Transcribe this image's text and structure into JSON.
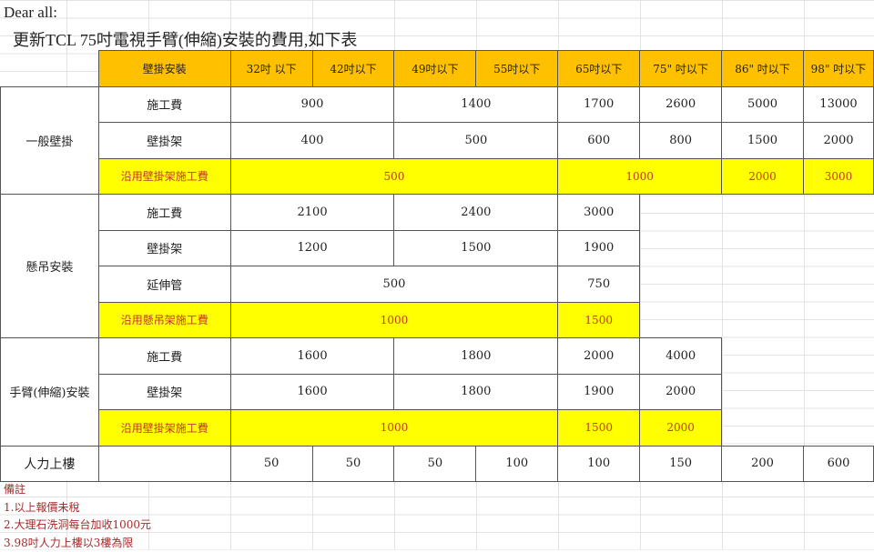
{
  "greeting": "Dear all:",
  "subject": "更新TCL 75吋電視手臂(伸縮)安裝的費用,如下表",
  "colors": {
    "header": "#ffc000",
    "highlight": "#ffff00",
    "highlight_text": "#c0392b"
  },
  "table": {
    "rows": [
      [
        {
          "t": "",
          "c": "none"
        },
        {
          "t": "壁掛安裝",
          "c": "hdr"
        },
        {
          "t": "32吋 以下",
          "c": "hdr"
        },
        {
          "t": "42吋以下",
          "c": "hdr"
        },
        {
          "t": "49吋以下",
          "c": "hdr"
        },
        {
          "t": "55吋以下",
          "c": "hdr"
        },
        {
          "t": "65吋以下",
          "c": "hdr"
        },
        {
          "t": "75\" 吋以下",
          "c": "hdr"
        },
        {
          "t": "86\" 吋以下",
          "c": "hdr"
        },
        {
          "t": "98\" 吋以下",
          "c": "hdr"
        }
      ],
      [
        {
          "t": "一般壁掛",
          "r": 3
        },
        {
          "t": "施工費"
        },
        {
          "t": "900",
          "s": 2
        },
        {
          "t": "1400",
          "s": 2
        },
        {
          "t": "1700"
        },
        {
          "t": "2600"
        },
        {
          "t": "5000"
        },
        {
          "t": "13000"
        }
      ],
      [
        {
          "t": "壁掛架"
        },
        {
          "t": "400",
          "s": 2
        },
        {
          "t": "500",
          "s": 2
        },
        {
          "t": "600"
        },
        {
          "t": "800"
        },
        {
          "t": "1500"
        },
        {
          "t": "2000"
        }
      ],
      [
        {
          "t": "沿用壁掛架施工費",
          "c": "yel"
        },
        {
          "t": "500",
          "s": 4,
          "c": "yel"
        },
        {
          "t": "1000",
          "s": 2,
          "c": "yel"
        },
        {
          "t": "2000",
          "c": "yel"
        },
        {
          "t": "3000",
          "c": "yel"
        }
      ],
      [
        {
          "t": "懸吊安裝",
          "r": 4
        },
        {
          "t": "施工費"
        },
        {
          "t": "2100",
          "s": 2
        },
        {
          "t": "2400",
          "s": 2
        },
        {
          "t": "3000"
        },
        {
          "t": "",
          "s": 3,
          "c": "none"
        }
      ],
      [
        {
          "t": "壁掛架"
        },
        {
          "t": "1200",
          "s": 2
        },
        {
          "t": "1500",
          "s": 2
        },
        {
          "t": "1900"
        },
        {
          "t": "",
          "s": 3,
          "c": "none"
        }
      ],
      [
        {
          "t": "延伸管"
        },
        {
          "t": "500",
          "s": 4
        },
        {
          "t": "750"
        },
        {
          "t": "",
          "s": 3,
          "c": "none"
        }
      ],
      [
        {
          "t": "沿用懸吊架施工費",
          "c": "yel"
        },
        {
          "t": "1000",
          "s": 4,
          "c": "yel"
        },
        {
          "t": "1500",
          "c": "yel"
        },
        {
          "t": "",
          "s": 3,
          "c": "none"
        }
      ],
      [
        {
          "t": "手臂(伸縮)安裝",
          "r": 3
        },
        {
          "t": "施工費"
        },
        {
          "t": "1600",
          "s": 2
        },
        {
          "t": "1800",
          "s": 2
        },
        {
          "t": "2000"
        },
        {
          "t": "4000"
        },
        {
          "t": "",
          "s": 2,
          "c": "none"
        }
      ],
      [
        {
          "t": "壁掛架"
        },
        {
          "t": "1600",
          "s": 2
        },
        {
          "t": "1800",
          "s": 2
        },
        {
          "t": "1900"
        },
        {
          "t": "2000"
        },
        {
          "t": "",
          "s": 2,
          "c": "none"
        }
      ],
      [
        {
          "t": "沿用壁掛架施工費",
          "c": "yel"
        },
        {
          "t": "1000",
          "s": 4,
          "c": "yel"
        },
        {
          "t": "1500",
          "c": "yel"
        },
        {
          "t": "2000",
          "c": "yel"
        },
        {
          "t": "",
          "s": 2,
          "c": "none"
        }
      ],
      [
        {
          "t": "人力上樓",
          "c": "big"
        },
        {
          "t": ""
        },
        {
          "t": "50"
        },
        {
          "t": "50"
        },
        {
          "t": "50"
        },
        {
          "t": "100"
        },
        {
          "t": "100"
        },
        {
          "t": "150"
        },
        {
          "t": "200"
        },
        {
          "t": "600"
        }
      ]
    ]
  },
  "notes": [
    "備註",
    "1.以上報價未稅",
    "2.大理石洗洞每台加收1000元",
    "3.98吋人力上樓以3樓為限"
  ]
}
